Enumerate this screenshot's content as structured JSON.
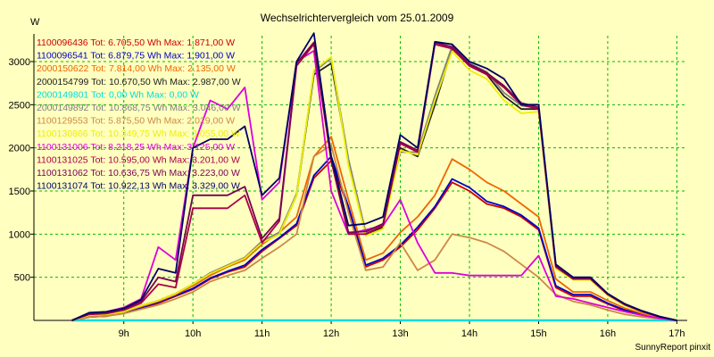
{
  "chart_data": {
    "type": "line",
    "title": "Wechselrichtervergleich vom 25.01.2009",
    "ylabel": "W",
    "xlabel": "",
    "credit": "SunnyReport pinxit",
    "ylim": [
      0,
      3300
    ],
    "xlim": [
      7.7,
      17.15
    ],
    "y_ticks": [
      500,
      1000,
      1500,
      2000,
      2500,
      3000
    ],
    "x_ticks": [
      {
        "value": 9,
        "label": "9h"
      },
      {
        "value": 10,
        "label": "10h"
      },
      {
        "value": 11,
        "label": "11h"
      },
      {
        "value": 12,
        "label": "12h"
      },
      {
        "value": 13,
        "label": "13h"
      },
      {
        "value": 14,
        "label": "14h"
      },
      {
        "value": 15,
        "label": "15h"
      },
      {
        "value": 16,
        "label": "16h"
      },
      {
        "value": 17,
        "label": "17h"
      }
    ],
    "grid": true,
    "legend_position": "top-left",
    "x": [
      8.25,
      8.5,
      8.75,
      9.0,
      9.25,
      9.5,
      9.75,
      10.0,
      10.25,
      10.5,
      10.75,
      11.0,
      11.25,
      11.5,
      11.75,
      12.0,
      12.25,
      12.5,
      12.75,
      13.0,
      13.25,
      13.5,
      13.75,
      14.0,
      14.25,
      14.5,
      14.75,
      15.0,
      15.25,
      15.5,
      15.75,
      16.0,
      16.25,
      16.5,
      16.75,
      17.0
    ],
    "series": [
      {
        "name": "1100096436",
        "label": "1100096436 Tot: 6.705,50 Wh Max: 1.871,00 W",
        "color": "#cc0000",
        "values": [
          0,
          40,
          50,
          90,
          140,
          200,
          280,
          360,
          480,
          560,
          620,
          800,
          950,
          1100,
          1650,
          1850,
          1300,
          620,
          700,
          850,
          1050,
          1300,
          1600,
          1500,
          1350,
          1300,
          1200,
          1050,
          380,
          280,
          280,
          190,
          110,
          70,
          30,
          0
        ]
      },
      {
        "name": "1100096541",
        "label": "1100096541 Tot: 6.879,75 Wh Max: 1.901,00 W",
        "color": "#0000cc",
        "values": [
          0,
          40,
          50,
          90,
          150,
          210,
          290,
          370,
          490,
          570,
          640,
          820,
          960,
          1120,
          1680,
          1900,
          1320,
          640,
          720,
          870,
          1080,
          1320,
          1640,
          1540,
          1380,
          1320,
          1220,
          1070,
          400,
          300,
          300,
          200,
          120,
          75,
          30,
          0
        ]
      },
      {
        "name": "2000150622",
        "label": "2000150622 Tot: 7.814,00 Wh Max: 2.135,00 W",
        "color": "#ee6600",
        "values": [
          0,
          50,
          60,
          100,
          160,
          220,
          300,
          400,
          520,
          620,
          700,
          880,
          1020,
          1200,
          1900,
          2130,
          1400,
          700,
          780,
          1020,
          1200,
          1450,
          1870,
          1750,
          1600,
          1500,
          1350,
          1200,
          480,
          330,
          330,
          230,
          140,
          80,
          30,
          0
        ]
      },
      {
        "name": "2000154799",
        "label": "2000154799 Tot: 10.670,50 Wh Max: 2.987,00 W",
        "color": "#202020",
        "values": [
          0,
          60,
          70,
          100,
          170,
          230,
          310,
          420,
          540,
          630,
          720,
          900,
          1000,
          1450,
          2850,
          2980,
          1850,
          1000,
          1080,
          2000,
          1900,
          2500,
          3150,
          2950,
          2850,
          2600,
          2450,
          2450,
          620,
          480,
          480,
          300,
          180,
          100,
          40,
          0
        ]
      },
      {
        "name": "2000149801",
        "label": "2000149801 Tot: 0,00 Wh Max: 0,00 W",
        "color": "#00dddd",
        "values": [
          0,
          0,
          0,
          0,
          0,
          0,
          0,
          0,
          0,
          0,
          0,
          0,
          0,
          0,
          0,
          0,
          0,
          0,
          0,
          0,
          0,
          0,
          0,
          0,
          0,
          0,
          0,
          0,
          0,
          0,
          0,
          0,
          0,
          0,
          0,
          0
        ]
      },
      {
        "name": "2000149892",
        "label": "2000149892 Tot: 10.868,75 Wh Max: 3.046,00 W",
        "color": "#808080",
        "values": [
          0,
          60,
          70,
          100,
          170,
          230,
          310,
          420,
          550,
          640,
          730,
          920,
          1020,
          1470,
          2880,
          3040,
          1870,
          1020,
          1100,
          1950,
          1950,
          2600,
          3180,
          2980,
          2880,
          2640,
          2490,
          2460,
          630,
          490,
          490,
          310,
          190,
          110,
          45,
          0
        ]
      },
      {
        "name": "1100129553",
        "label": "1100129553 Tot: 5.875,50 Wh Max: 2.029,00 W",
        "color": "#cc8844",
        "values": [
          0,
          40,
          50,
          80,
          130,
          180,
          250,
          330,
          450,
          520,
          580,
          720,
          850,
          1000,
          1900,
          2030,
          1250,
          580,
          620,
          900,
          580,
          700,
          1000,
          960,
          900,
          800,
          650,
          500,
          300,
          220,
          180,
          120,
          70,
          40,
          20,
          0
        ]
      },
      {
        "name": "1100130866",
        "label": "1100130866 Tot: 10.349,75 Wh Max: 3.055,00 W",
        "color": "#eeee00",
        "values": [
          0,
          60,
          70,
          100,
          170,
          230,
          310,
          420,
          540,
          630,
          720,
          900,
          1000,
          1450,
          2900,
          3055,
          1800,
          980,
          1060,
          1970,
          1920,
          2550,
          3120,
          2900,
          2800,
          2550,
          2400,
          2420,
          600,
          470,
          470,
          290,
          170,
          95,
          40,
          0
        ]
      },
      {
        "name": "1100131006",
        "label": "1100131006 Tot: 8.218,25 Wh Max: 3.125,00 W",
        "color": "#dd00dd",
        "values": [
          0,
          80,
          100,
          150,
          250,
          850,
          700,
          2000,
          2550,
          2450,
          2700,
          1400,
          1600,
          3000,
          3125,
          1500,
          1000,
          1050,
          1100,
          1400,
          900,
          550,
          550,
          520,
          520,
          520,
          520,
          750,
          280,
          250,
          200,
          150,
          100,
          60,
          25,
          0
        ]
      },
      {
        "name": "1100131025",
        "label": "1100131025 Tot: 10.595,00 Wh Max: 3.201,00 W",
        "color": "#aa0044",
        "values": [
          0,
          70,
          80,
          120,
          200,
          420,
          380,
          1300,
          1300,
          1300,
          1450,
          900,
          1150,
          2950,
          3201,
          1850,
          1000,
          1000,
          1100,
          2050,
          1950,
          3200,
          3150,
          2950,
          2850,
          2700,
          2500,
          2450,
          620,
          480,
          480,
          300,
          180,
          100,
          40,
          0
        ]
      },
      {
        "name": "1100131062",
        "label": "1100131062 Tot: 10.636,75 Wh Max: 3.223,00 W",
        "color": "#770055",
        "values": [
          0,
          80,
          90,
          130,
          220,
          500,
          450,
          1450,
          1450,
          1450,
          1550,
          950,
          1180,
          2980,
          3223,
          1870,
          1020,
          1030,
          1120,
          2070,
          1970,
          3220,
          3170,
          2970,
          2870,
          2720,
          2520,
          2470,
          630,
          490,
          490,
          305,
          185,
          105,
          42,
          0
        ]
      },
      {
        "name": "1100131074",
        "label": "1100131074 Tot: 10.922,13 Wh Max: 3.329,00 W",
        "color": "#000066",
        "values": [
          0,
          90,
          100,
          140,
          240,
          600,
          550,
          2000,
          2100,
          2100,
          2250,
          1450,
          1650,
          3000,
          3329,
          1900,
          1100,
          1120,
          1200,
          2150,
          2000,
          3230,
          3200,
          3000,
          2920,
          2800,
          2500,
          2500,
          650,
          500,
          500,
          310,
          190,
          110,
          45,
          0
        ]
      }
    ]
  }
}
